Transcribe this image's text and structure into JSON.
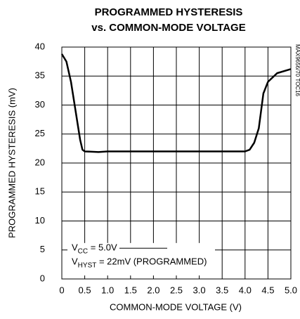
{
  "chart_data": {
    "type": "line",
    "title": [
      "PROGRAMMED HYSTERESIS",
      "vs. COMMON-MODE VOLTAGE"
    ],
    "x_label": "COMMON-MODE VOLTAGE (V)",
    "y_label": "PROGRAMMED HYSTERESIS (mV)",
    "side_note": "MAX9656/70 TOC16",
    "annotations": [
      {
        "text": "V",
        "sub": "CC",
        "rest": " = 5.0V"
      },
      {
        "text": "V",
        "sub": "HYST",
        "rest": " = 22mV (PROGRAMMED)"
      }
    ],
    "x": [
      0,
      0.1,
      0.2,
      0.3,
      0.4,
      0.45,
      0.5,
      0.8,
      1.0,
      4.0,
      4.1,
      4.2,
      4.3,
      4.35,
      4.4,
      4.5,
      4.7,
      5.0
    ],
    "y": [
      38.8,
      37.5,
      34,
      29,
      24,
      22.3,
      22,
      21.9,
      22,
      22,
      22.3,
      23.5,
      26,
      29,
      32,
      34,
      35.5,
      36.2
    ],
    "color": "#000000",
    "xlim": [
      0,
      5.0
    ],
    "xticks": [
      0,
      0.5,
      {
        "value": 1.0,
        "label": "1.0"
      },
      1.5,
      {
        "value": 2.0,
        "label": "2.0"
      },
      2.5,
      {
        "value": 3.0,
        "label": "3.0"
      },
      3.5,
      {
        "value": 4.0,
        "label": "4.0"
      },
      4.5,
      {
        "value": 5.0,
        "label": "5.0"
      }
    ],
    "ylim": [
      0,
      40
    ],
    "yticks": [
      0,
      5,
      10,
      15,
      20,
      25,
      30,
      35,
      40
    ],
    "grid": true
  }
}
